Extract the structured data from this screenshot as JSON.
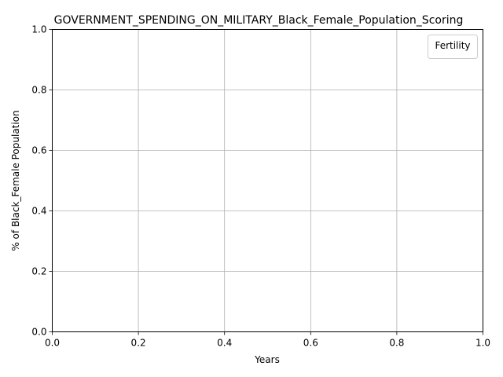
{
  "chart_data": {
    "type": "line",
    "title": "GOVERNMENT_SPENDING_ON_MILITARY_Black_Female_Population_Scoring",
    "xlabel": "Years",
    "ylabel": "% of Black_Female Population",
    "xlim": [
      0.0,
      1.0
    ],
    "ylim": [
      0.0,
      1.0
    ],
    "xticks": [
      "0.0",
      "0.2",
      "0.4",
      "0.6",
      "0.8",
      "1.0"
    ],
    "yticks": [
      "0.0",
      "0.2",
      "0.4",
      "0.6",
      "0.8",
      "1.0"
    ],
    "grid": true,
    "legend": {
      "title": "Fertility",
      "placement": "top-right",
      "entries": []
    },
    "series": []
  }
}
